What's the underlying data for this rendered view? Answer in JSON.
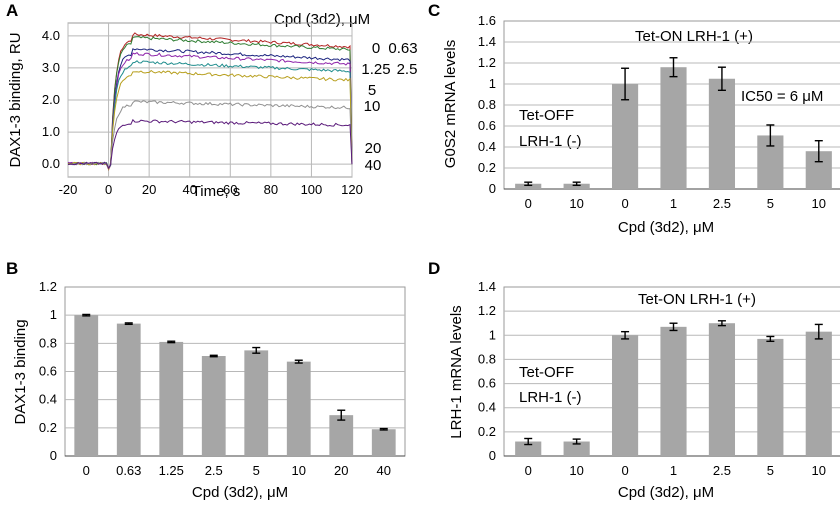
{
  "chart_data": [
    {
      "id": "A",
      "type": "line",
      "panel_label": "A",
      "title": "",
      "legend_title": "Cpd (3d2), μM",
      "xlabel": "Time, s",
      "ylabel": "DAX1-3 binding, RU",
      "xlim": [
        -20,
        120
      ],
      "ylim": [
        -0.4,
        4.4
      ],
      "x_ticks": [
        "-20",
        "0",
        "20",
        "40",
        "60",
        "80",
        "100",
        "120"
      ],
      "y_ticks": [
        "0.0",
        "1.0",
        "2.0",
        "3.0",
        "4.0"
      ],
      "series": [
        {
          "name": "0",
          "color": "#b22222",
          "plateau": 4.05
        },
        {
          "name": "0.63",
          "color": "#2e7d32",
          "plateau": 3.95
        },
        {
          "name": "1.25",
          "color": "#1a237e",
          "plateau": 3.6
        },
        {
          "name": "2.5",
          "color": "#8e24aa",
          "plateau": 3.45
        },
        {
          "name": "5",
          "color": "#1e8c8c",
          "plateau": 3.2
        },
        {
          "name": "10",
          "color": "#b8a020",
          "plateau": 2.9
        },
        {
          "name": "20",
          "color": "#909090",
          "plateau": 1.95
        },
        {
          "name": "40",
          "color": "#5a1a7a",
          "plateau": 1.35
        }
      ]
    },
    {
      "id": "B",
      "type": "bar",
      "panel_label": "B",
      "title": "",
      "xlabel": "Cpd (3d2), μM",
      "ylabel": "DAX1-3 binding",
      "ylim": [
        0,
        1.2
      ],
      "y_ticks": [
        "0",
        "0.2",
        "0.4",
        "0.6",
        "0.8",
        "1",
        "1.2"
      ],
      "categories": [
        "0",
        "0.63",
        "1.25",
        "2.5",
        "5",
        "10",
        "20",
        "40"
      ],
      "values": [
        1.0,
        0.94,
        0.81,
        0.71,
        0.75,
        0.67,
        0.29,
        0.19
      ],
      "errors": [
        0.005,
        0.005,
        0.005,
        0.005,
        0.02,
        0.01,
        0.035,
        0.005
      ]
    },
    {
      "id": "C",
      "type": "bar",
      "panel_label": "C",
      "title": "",
      "xlabel": "Cpd (3d2), μM",
      "ylabel": "G0S2 mRNA levels",
      "ylim": [
        0,
        1.6
      ],
      "y_ticks": [
        "0",
        "0.2",
        "0.4",
        "0.6",
        "0.8",
        "1",
        "1.2",
        "1.4",
        "1.6"
      ],
      "categories": [
        "0",
        "10",
        "0",
        "1",
        "2.5",
        "5",
        "10"
      ],
      "values": [
        0.05,
        0.05,
        1.0,
        1.16,
        1.05,
        0.51,
        0.36
      ],
      "errors": [
        0.015,
        0.015,
        0.15,
        0.09,
        0.11,
        0.1,
        0.1
      ],
      "annotations": {
        "left_line1": "Tet-OFF",
        "left_line2": "LRH-1 (-)",
        "right": "Tet-ON  LRH-1 (+)",
        "ic50": "IC50 = 6 μM"
      }
    },
    {
      "id": "D",
      "type": "bar",
      "panel_label": "D",
      "title": "",
      "xlabel": "Cpd (3d2), μM",
      "ylabel": "LRH-1 mRNA levels",
      "ylim": [
        0,
        1.4
      ],
      "y_ticks": [
        "0",
        "0.2",
        "0.4",
        "0.6",
        "0.8",
        "1",
        "1.2",
        "1.4"
      ],
      "categories": [
        "0",
        "10",
        "0",
        "1",
        "2.5",
        "5",
        "10"
      ],
      "values": [
        0.12,
        0.12,
        1.0,
        1.07,
        1.1,
        0.97,
        1.03
      ],
      "errors": [
        0.025,
        0.02,
        0.03,
        0.03,
        0.02,
        0.02,
        0.06
      ],
      "annotations": {
        "left_line1": "Tet-OFF",
        "left_line2": "LRH-1 (-)",
        "right": "Tet-ON  LRH-1 (+)"
      }
    }
  ]
}
